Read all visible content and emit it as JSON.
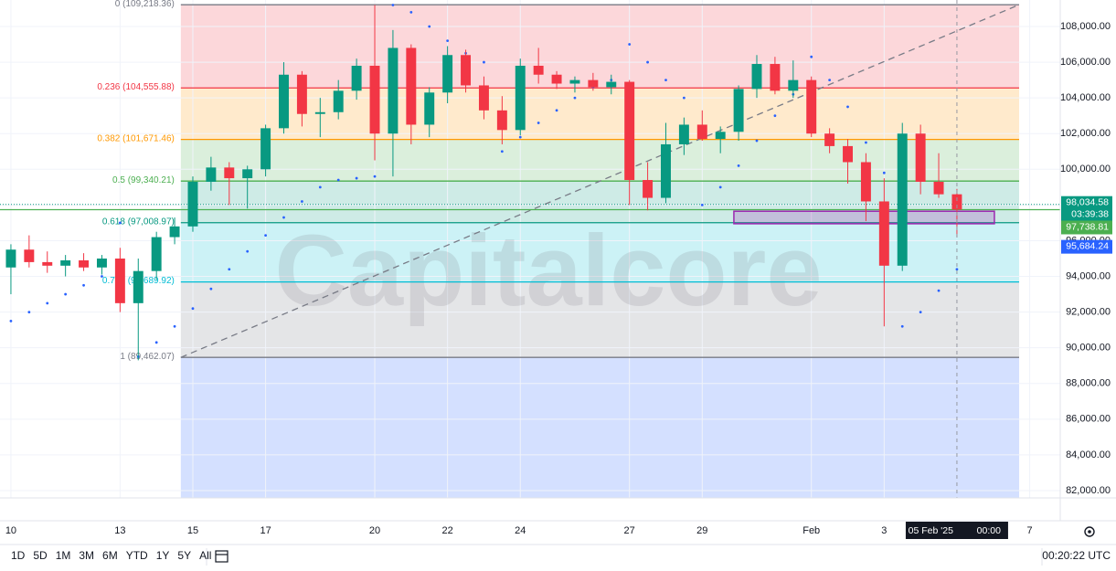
{
  "chart_data": {
    "type": "candlestick",
    "xlim": [
      9.7,
      38.84
    ],
    "ylim": [
      81590,
      109484
    ],
    "xticks": [
      10,
      13,
      15,
      17,
      20,
      22,
      24,
      27,
      29,
      {
        "value": 32,
        "label": "Feb"
      },
      {
        "value": 34,
        "label": "3"
      },
      {
        "value": 38,
        "label": "7"
      }
    ],
    "yticks": [
      {
        "value": 82000,
        "label": "82,000.00"
      },
      {
        "value": 84000,
        "label": "84,000.00"
      },
      {
        "value": 86000,
        "label": "86,000.00"
      },
      {
        "value": 88000,
        "label": "88,000.00"
      },
      {
        "value": 90000,
        "label": "90,000.00"
      },
      {
        "value": 92000,
        "label": "92,000.00"
      },
      {
        "value": 94000,
        "label": "94,000.00"
      },
      {
        "value": 96000,
        "label": "96,000.00"
      },
      {
        "value": 98000,
        "label": "98,000.00"
      },
      {
        "value": 100000,
        "label": "100,000.00"
      },
      {
        "value": 102000,
        "label": "102,000.00"
      },
      {
        "value": 104000,
        "label": "104,000.00"
      },
      {
        "value": 106000,
        "label": "106,000.00"
      },
      {
        "value": 108000,
        "label": "108,000.00"
      }
    ],
    "up_color": "#089981",
    "down_color": "#f23645",
    "candles": {
      "x": [
        10.0,
        10.5,
        11.0,
        11.5,
        12.0,
        12.5,
        13.0,
        13.5,
        14.0,
        14.5,
        15.0,
        15.5,
        16.0,
        16.5,
        17.0,
        17.5,
        18.0,
        18.5,
        19.0,
        19.5,
        20.0,
        20.5,
        21.0,
        21.5,
        22.0,
        22.5,
        23.0,
        23.5,
        24.0,
        24.5,
        25.0,
        25.5,
        26.0,
        26.5,
        27.0,
        27.5,
        28.0,
        28.5,
        29.0,
        29.5,
        30.0,
        30.5,
        31.0,
        31.5,
        32.0,
        32.5,
        33.0,
        33.5,
        34.0,
        34.5,
        35.0,
        35.5,
        36.0
      ],
      "open": [
        94500,
        95500,
        94800,
        94600,
        94900,
        94500,
        95000,
        92500,
        94300,
        96200,
        96800,
        99300,
        100100,
        99500,
        100000,
        102300,
        105300,
        103100,
        103200,
        104400,
        105800,
        102000,
        106800,
        102500,
        104300,
        106400,
        104700,
        103300,
        102200,
        105800,
        105300,
        104800,
        105000,
        104600,
        104900,
        99400,
        98400,
        101400,
        102500,
        101700,
        102100,
        104500,
        105900,
        104400,
        105000,
        102000,
        101300,
        100400,
        98200,
        94600,
        102000,
        99300,
        98600
      ],
      "high": [
        95800,
        96300,
        95400,
        95200,
        95300,
        95200,
        95600,
        95000,
        96500,
        97300,
        99600,
        100700,
        100400,
        100200,
        102500,
        106000,
        105500,
        104000,
        105000,
        106200,
        109200,
        107800,
        107000,
        104600,
        106900,
        106700,
        105200,
        104100,
        106200,
        106800,
        105500,
        105200,
        105400,
        105300,
        105000,
        100400,
        102600,
        102900,
        103300,
        102400,
        104700,
        106400,
        106300,
        106100,
        105200,
        102300,
        101700,
        100900,
        99500,
        102600,
        102500,
        100900,
        98900
      ],
      "low": [
        93000,
        94500,
        94200,
        94000,
        94300,
        94100,
        92000,
        89300,
        93800,
        95800,
        96500,
        98800,
        98000,
        97800,
        99600,
        102000,
        102400,
        101800,
        102800,
        103900,
        100500,
        99600,
        101400,
        101800,
        103700,
        104300,
        102800,
        101400,
        101900,
        104800,
        104500,
        104300,
        104400,
        104200,
        98000,
        97700,
        98100,
        100800,
        101600,
        100900,
        101600,
        104000,
        104200,
        104000,
        101800,
        100900,
        99200,
        97100,
        91200,
        94300,
        98600,
        98400,
        96200
      ],
      "close": [
        95500,
        94800,
        94600,
        94900,
        94500,
        95000,
        92500,
        94300,
        96200,
        96800,
        99300,
        100100,
        99500,
        100000,
        102300,
        105300,
        103100,
        103200,
        104400,
        105800,
        102000,
        106800,
        102500,
        104300,
        106400,
        104700,
        103300,
        102200,
        105800,
        105300,
        104800,
        105000,
        104600,
        104900,
        99400,
        98400,
        101400,
        102500,
        101700,
        102100,
        104500,
        105900,
        104400,
        105000,
        102000,
        101300,
        100400,
        98200,
        94600,
        102000,
        99300,
        98600,
        97738.81
      ]
    },
    "sar": {
      "color": "#2962ff",
      "values": [
        91500,
        92000,
        92500,
        93000,
        93500,
        94000,
        97000,
        89500,
        90300,
        91200,
        92200,
        93300,
        94400,
        95400,
        96300,
        97300,
        98200,
        99000,
        99400,
        99500,
        99600,
        109200,
        108800,
        108000,
        107200,
        106500,
        106000,
        101000,
        101800,
        102600,
        103300,
        104000,
        104600,
        105000,
        107000,
        106000,
        105000,
        104000,
        98000,
        99000,
        100200,
        101600,
        103000,
        104200,
        106300,
        105000,
        103500,
        101500,
        99800,
        91200,
        92000,
        93200,
        94400
      ]
    },
    "fib": {
      "x": [
        14.67,
        37.71
      ],
      "extension_color": "#2962ff",
      "levels": [
        {
          "label": "0 (109,218.36)",
          "price": 109218.36,
          "color": "#787b86"
        },
        {
          "label": "0.236 (104,555.88)",
          "price": 104555.88,
          "color": "#f23645"
        },
        {
          "label": "0.382 (101,671.46)",
          "price": 101671.46,
          "color": "#ff9800"
        },
        {
          "label": "0.5 (99,340.21)",
          "price": 99340.21,
          "color": "#4caf50"
        },
        {
          "label": "0.618 (97,008.97)",
          "price": 97008.97,
          "color": "#089981"
        },
        {
          "label": "0.786 (93,689.92)",
          "price": 93689.92,
          "color": "#00bcd4"
        },
        {
          "label": "1 (89,462.07)",
          "price": 89462.07,
          "color": "#787b86"
        }
      ]
    },
    "trendline": {
      "x": [
        14.67,
        37.71
      ],
      "y": [
        89462.07,
        109218.36
      ],
      "color": "#787b86"
    },
    "zone": {
      "x": [
        29.87,
        37.03
      ],
      "y": [
        97650,
        96950
      ],
      "color": "#9c27b0"
    },
    "price_tags": [
      {
        "value": 98034.58,
        "label": "98,034.58",
        "countdown": "03:39:38",
        "color": "#089981"
      },
      {
        "value": 97738.81,
        "label": "97,738.81",
        "color": "#4caf50"
      },
      {
        "value": 95684.24,
        "label": "95,684.24",
        "color": "#2962ff"
      }
    ],
    "crosshair": {
      "x": 36,
      "date": "Wed 05 Feb '25",
      "time": "00:00"
    },
    "watermark": "Capitalcore",
    "ranges": [
      "1D",
      "5D",
      "1M",
      "3M",
      "6M",
      "YTD",
      "1Y",
      "5Y",
      "All"
    ],
    "clock": "00:20:22 UTC"
  }
}
